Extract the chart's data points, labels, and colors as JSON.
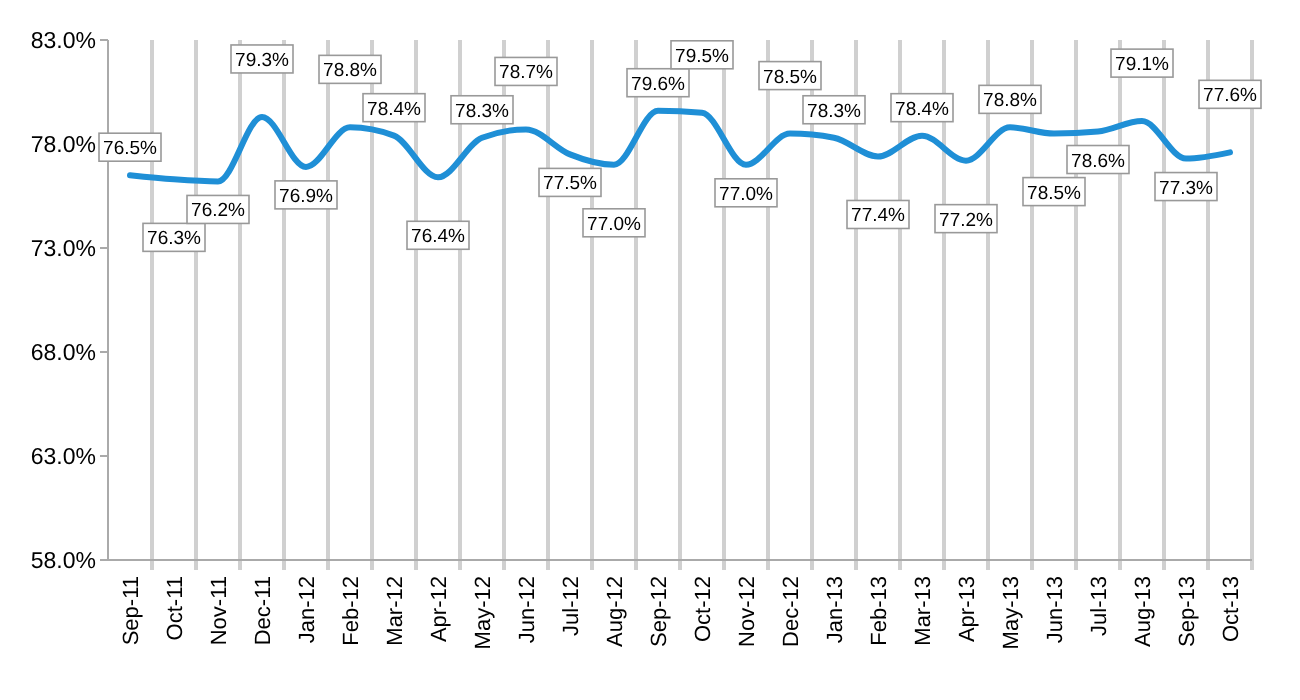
{
  "chart_data": {
    "type": "line",
    "categories": [
      "Sep-11",
      "Oct-11",
      "Nov-11",
      "Dec-11",
      "Jan-12",
      "Feb-12",
      "Mar-12",
      "Apr-12",
      "May-12",
      "Jun-12",
      "Jul-12",
      "Aug-12",
      "Sep-12",
      "Oct-12",
      "Nov-12",
      "Dec-12",
      "Jan-13",
      "Feb-13",
      "Mar-13",
      "Apr-13",
      "May-13",
      "Jun-13",
      "Jul-13",
      "Aug-13",
      "Sep-13",
      "Oct-13"
    ],
    "series": [
      {
        "color": "#1f8fd6",
        "values": [
          76.5,
          76.3,
          76.2,
          79.3,
          76.9,
          78.8,
          78.4,
          76.4,
          78.3,
          78.7,
          77.5,
          77.0,
          79.6,
          79.5,
          77.0,
          78.5,
          78.3,
          77.4,
          78.4,
          77.2,
          78.8,
          78.5,
          78.6,
          79.1,
          77.3,
          77.6
        ],
        "value_labels": [
          "76.5%",
          "76.3%",
          "76.2%",
          "79.3%",
          "76.9%",
          "78.8%",
          "78.4%",
          "76.4%",
          "78.3%",
          "78.7%",
          "77.5%",
          "77.0%",
          "79.6%",
          "79.5%",
          "77.0%",
          "78.5%",
          "78.3%",
          "77.4%",
          "78.4%",
          "77.2%",
          "78.8%",
          "78.5%",
          "78.6%",
          "79.1%",
          "77.3%",
          "77.6%"
        ]
      }
    ],
    "ylim": [
      58,
      83
    ],
    "yticks": [
      {
        "value": 58,
        "label": "58.0%"
      },
      {
        "value": 63,
        "label": "63.0%"
      },
      {
        "value": 68,
        "label": "68.0%"
      },
      {
        "value": 73,
        "label": "73.0%"
      },
      {
        "value": 78,
        "label": "78.0%"
      },
      {
        "value": 83,
        "label": "83.0%"
      }
    ],
    "grid": "x",
    "marker": "none",
    "line_style": "solid"
  }
}
